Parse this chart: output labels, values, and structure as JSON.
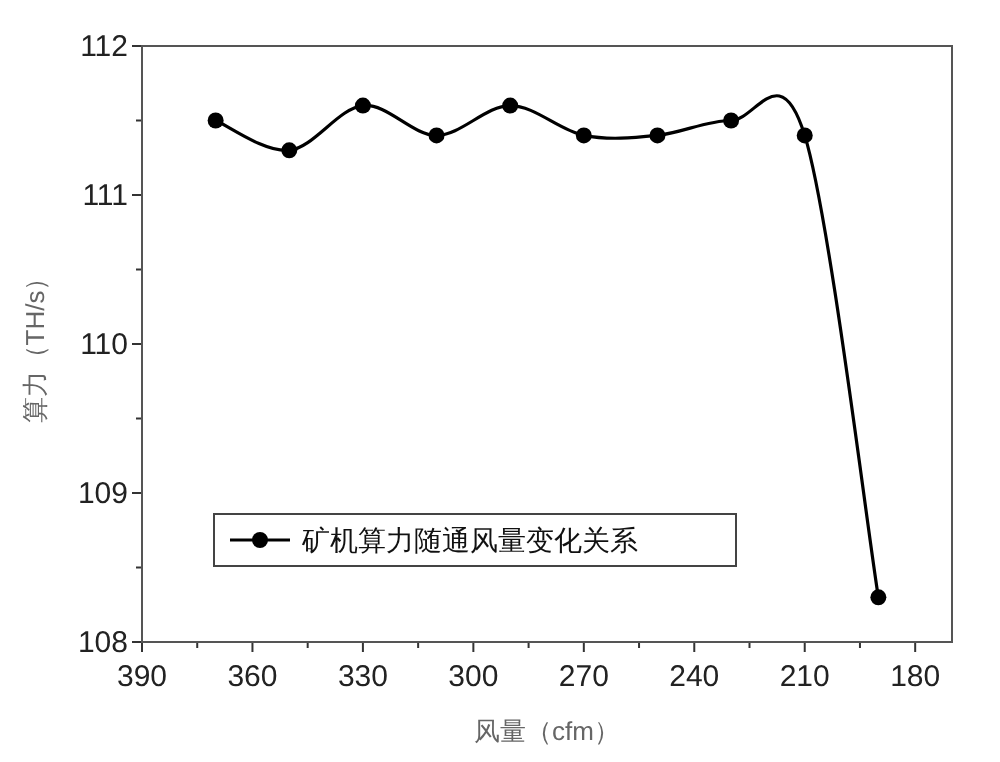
{
  "chart_data": {
    "type": "line",
    "xlabel": "风量（cfm）",
    "ylabel": "算力（TH/s）",
    "x": [
      370,
      350,
      330,
      310,
      290,
      270,
      250,
      230,
      210,
      190
    ],
    "series": [
      {
        "name": "矿机算力随通风量变化关系",
        "color": "#000000",
        "values": [
          111.5,
          111.3,
          111.6,
          111.4,
          111.6,
          111.4,
          111.4,
          111.5,
          111.4,
          108.3
        ]
      }
    ],
    "xlim": [
      390,
      170
    ],
    "xticks": [
      390,
      {
        "value": 375,
        "label": null
      },
      360,
      {
        "value": 345,
        "label": null
      },
      330,
      {
        "value": 315,
        "label": null
      },
      300,
      {
        "value": 285,
        "label": null
      },
      270,
      {
        "value": 255,
        "label": null
      },
      240,
      {
        "value": 225,
        "label": null
      },
      210,
      {
        "value": 195,
        "label": null
      },
      180
    ],
    "ylim": [
      108,
      112
    ],
    "yticks": [
      108,
      {
        "value": 108.5,
        "label": null
      },
      109,
      {
        "value": 109.5,
        "label": null
      },
      110,
      {
        "value": 110.5,
        "label": null
      },
      111,
      {
        "value": 111.5,
        "label": null
      },
      112
    ],
    "marker": "circle",
    "line_style": "solid",
    "grid": false,
    "legend": "bottom"
  }
}
